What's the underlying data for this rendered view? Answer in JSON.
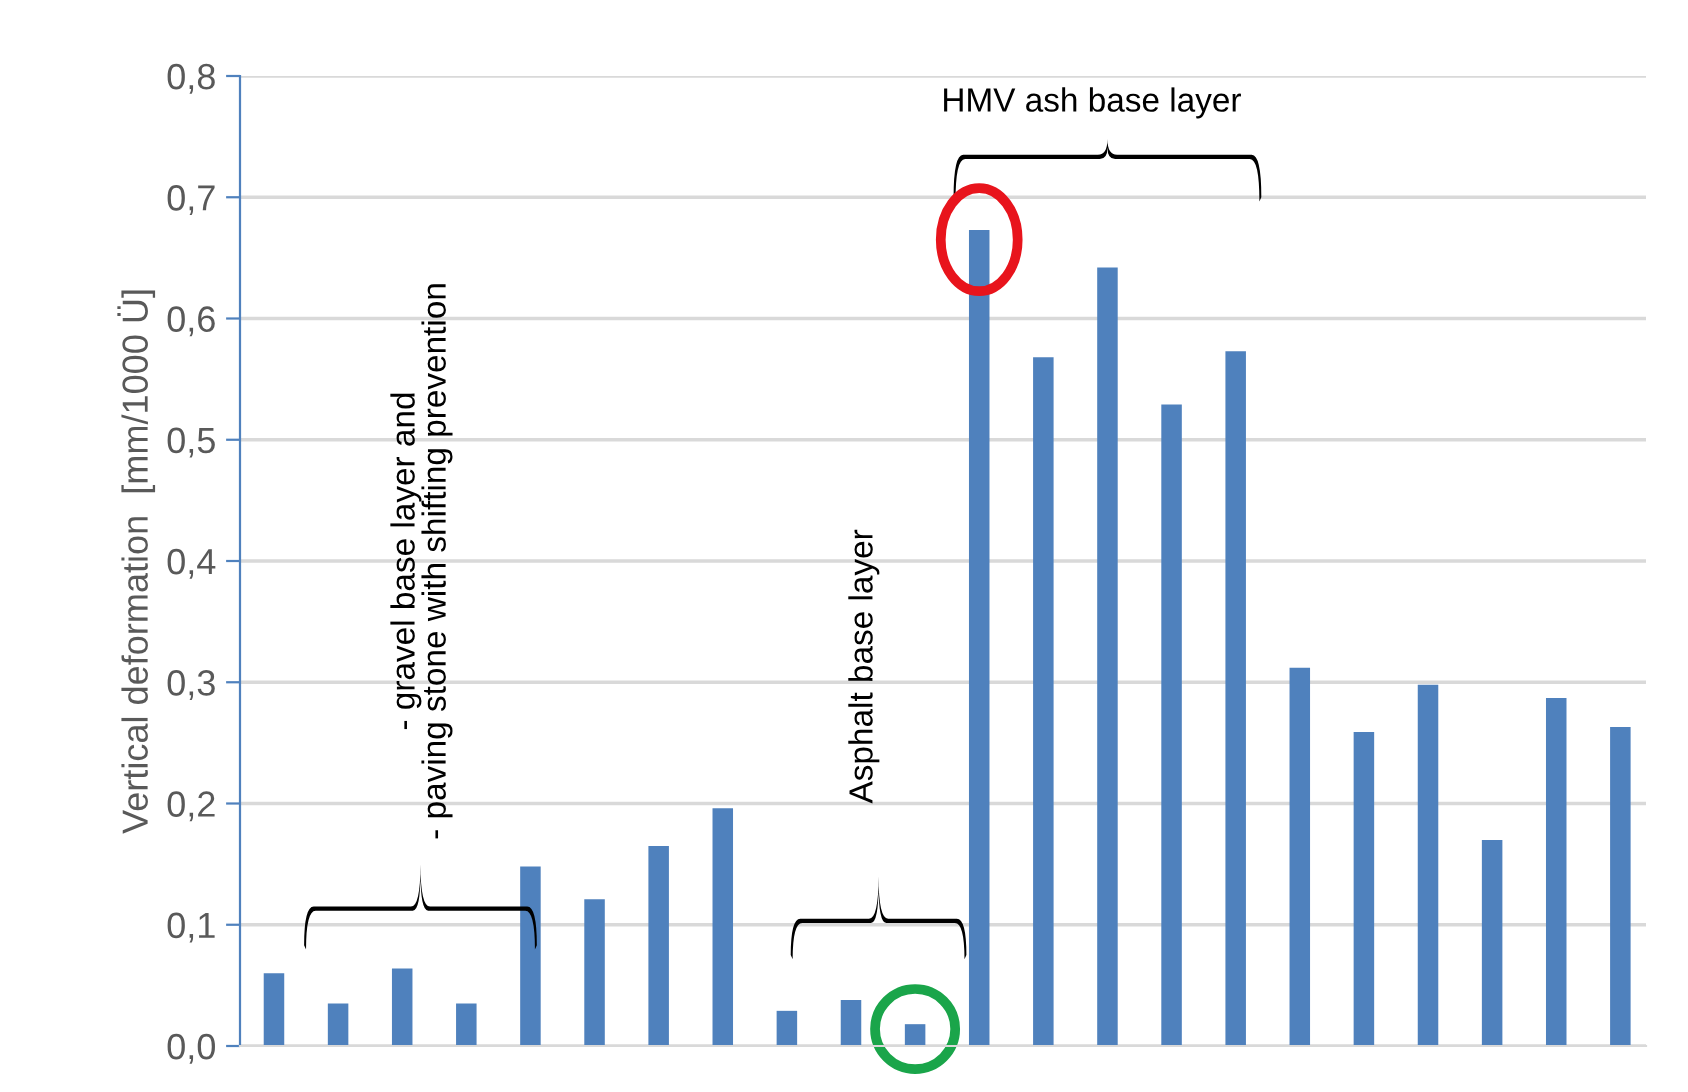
{
  "chart_data": {
    "type": "bar",
    "ylabel": "Vertical deformation  [mm/1000 Ü]",
    "categories": [
      null,
      null,
      null,
      null,
      null,
      null,
      null,
      null,
      null,
      null,
      null,
      null,
      null,
      null,
      null,
      null,
      null,
      null,
      null,
      null,
      null,
      null
    ],
    "values": [
      0.06,
      0.035,
      0.064,
      0.035,
      0.148,
      0.121,
      0.165,
      0.196,
      0.029,
      0.038,
      0.018,
      0.673,
      0.568,
      0.642,
      0.529,
      0.573,
      0.312,
      0.259,
      0.298,
      0.17,
      0.287,
      0.263
    ],
    "color": "#4f81bd",
    "ylim": [
      0,
      0.8
    ],
    "yticks": [
      {
        "value": 0,
        "label": "0,0"
      },
      {
        "value": 0.1,
        "label": "0,1"
      },
      {
        "value": 0.2,
        "label": "0,2"
      },
      {
        "value": 0.3,
        "label": "0,3"
      },
      {
        "value": 0.4,
        "label": "0,4"
      },
      {
        "value": 0.5,
        "label": "0,5"
      },
      {
        "value": 0.6,
        "label": "0,6"
      },
      {
        "value": 0.7,
        "label": "0,7"
      },
      {
        "value": 0.8,
        "label": "0,8"
      }
    ],
    "grid": "y",
    "annotations": [
      "- gravel base layer and\n- paving stone with shifting prevention",
      "Asphalt base layer",
      "HMV ash base layer"
    ]
  }
}
